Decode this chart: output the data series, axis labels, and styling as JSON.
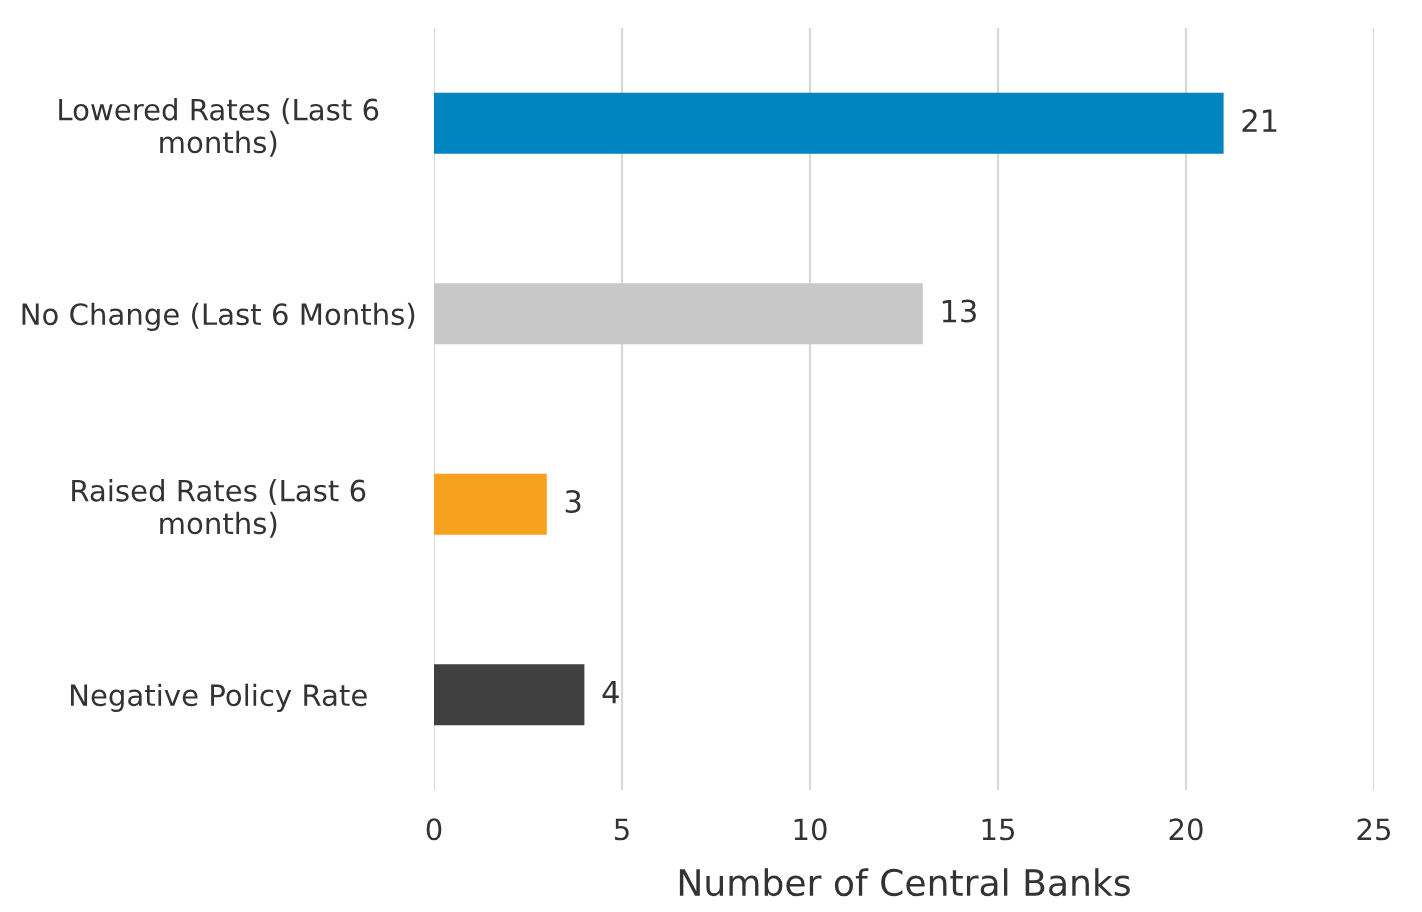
{
  "chart_data": {
    "type": "bar",
    "orientation": "horizontal",
    "xlabel": "Number of Central Banks",
    "categories": [
      "Lowered Rates (Last 6\nmonths)",
      "No Change (Last 6 Months)",
      "Raised Rates (Last 6\nmonths)",
      "Negative Policy Rate"
    ],
    "values": [
      21,
      13,
      3,
      4
    ],
    "colors": [
      "#0085c0",
      "#c8c8c8",
      "#f7a11f",
      "#404040"
    ],
    "xlim": [
      0,
      25
    ],
    "xticks": [
      0,
      5,
      10,
      15,
      20,
      25
    ],
    "grid": "x",
    "data_labels": true
  }
}
